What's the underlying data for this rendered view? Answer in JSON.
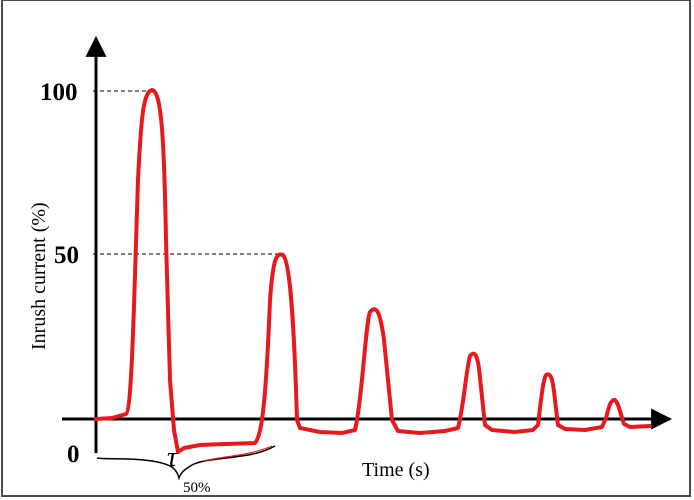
{
  "chart_data": {
    "type": "line",
    "title": "",
    "xlabel": "Time (s)",
    "ylabel": "Inrush current (%)",
    "yticks": [
      {
        "value": 100,
        "label": "100"
      },
      {
        "value": 50,
        "label": "50"
      },
      {
        "value": 0,
        "label": "0"
      }
    ],
    "ylim": [
      0,
      100
    ],
    "reference_lines": [
      100,
      50
    ],
    "annotation": {
      "symbol": "τ",
      "subscript": "50%"
    },
    "series": [
      {
        "color": "#e8191d",
        "peaks_percent": [
          100,
          50,
          35,
          21,
          15,
          8
        ]
      }
    ]
  }
}
